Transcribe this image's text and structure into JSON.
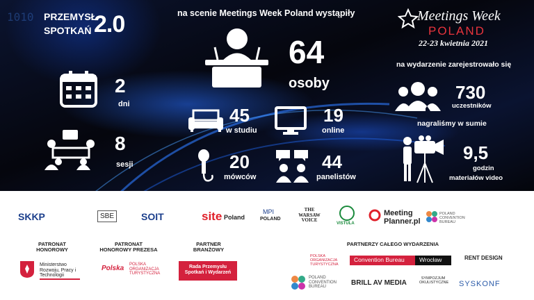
{
  "header": {
    "logo_line1": "PRZEMYSŁ",
    "logo_line2": "SPOTKAŃ",
    "logo_version": "2.0"
  },
  "left_stats": [
    {
      "value": 2,
      "label": "dni"
    },
    {
      "value": 8,
      "label": "sesji"
    }
  ],
  "center": {
    "heading": "na scenie Meetings Week Poland wystąpiły",
    "total": {
      "value": 64,
      "label": "osoby"
    },
    "breakdown": [
      {
        "value": 45,
        "label": "w studiu"
      },
      {
        "value": 19,
        "label": "online"
      },
      {
        "value": 20,
        "label": "mówców"
      },
      {
        "value": 44,
        "label": "panelistów"
      }
    ]
  },
  "event": {
    "name": "Meetings Week",
    "country": "POLAND",
    "dates": "22-23 kwietnia 2021"
  },
  "right": {
    "registered_heading": "na wydarzenie zarejestrowało się",
    "registered": {
      "value": 730,
      "label": "uczestników"
    },
    "recorded_heading": "nagraliśmy w sumie",
    "recorded": {
      "value": "9,5",
      "label_line1": "godzin",
      "label_line2": "materiałów video"
    }
  },
  "sponsors": {
    "row": [
      "SKKP",
      "SBE",
      "SOIT",
      "site",
      "Poland",
      "MPI",
      "POLAND",
      "THE WARSAW VOICE",
      "VISTULA",
      "Meeting",
      "Planner.pl",
      "POLAND CONVENTION BUREAU"
    ],
    "sections": [
      {
        "title_line1": "PATRONAT",
        "title_line2": "HONOROWY",
        "logos": [
          "Ministerstwo Rozwoju, Pracy i Technologii"
        ]
      },
      {
        "title_line1": "PATRONAT",
        "title_line2": "HONOROWY PREZESA",
        "logos": [
          "Polska",
          "POLSKA ORGANIZACJA TURYSTYCZNA"
        ]
      },
      {
        "title_line1": "PARTNER",
        "title_line2": "BRANŻOWY",
        "logos": [
          "Rada Przemysłu Spotkań i Wydarzeń"
        ]
      },
      {
        "title_line1": "PARTNERZY CAŁEGO WYDARZENIA",
        "title_line2": null,
        "logos": [
          "POLSKA ORGANIZACJA TURYSTYCZNA",
          "Convention Bureau",
          "Wrocław",
          "RENT DESIGN",
          "POLAND CONVENTION BUREAU",
          "BRILL AV MEDIA",
          "SYMPOZJUM OKULISTYCZNE",
          "SYSKONF"
        ]
      }
    ]
  }
}
